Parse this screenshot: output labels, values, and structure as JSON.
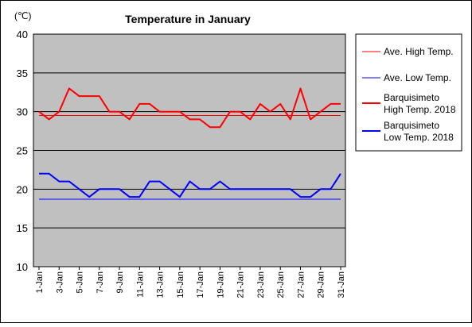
{
  "chart_data": {
    "type": "line",
    "title": "Temperature in January",
    "unit_label": "(℃)",
    "ylim": [
      10,
      40
    ],
    "yticks": [
      10,
      15,
      20,
      25,
      30,
      35,
      40
    ],
    "grid": "horizontal",
    "legend_position": "right",
    "x": [
      "1-Jan",
      "2-Jan",
      "3-Jan",
      "4-Jan",
      "5-Jan",
      "6-Jan",
      "7-Jan",
      "8-Jan",
      "9-Jan",
      "10-Jan",
      "11-Jan",
      "12-Jan",
      "13-Jan",
      "14-Jan",
      "15-Jan",
      "16-Jan",
      "17-Jan",
      "18-Jan",
      "19-Jan",
      "20-Jan",
      "21-Jan",
      "22-Jan",
      "23-Jan",
      "24-Jan",
      "25-Jan",
      "26-Jan",
      "27-Jan",
      "28-Jan",
      "29-Jan",
      "30-Jan",
      "31-Jan"
    ],
    "x_tick_labels": [
      "1-Jan",
      "3-Jan",
      "5-Jan",
      "7-Jan",
      "9-Jan",
      "11-Jan",
      "13-Jan",
      "15-Jan",
      "17-Jan",
      "19-Jan",
      "21-Jan",
      "23-Jan",
      "25-Jan",
      "27-Jan",
      "29-Jan",
      "31-Jan"
    ],
    "series": [
      {
        "name": "Ave. High Temp.",
        "color": "#ff0000",
        "style": "thin",
        "values": [
          29.5,
          29.5,
          29.5,
          29.5,
          29.5,
          29.5,
          29.5,
          29.5,
          29.5,
          29.5,
          29.5,
          29.5,
          29.5,
          29.5,
          29.5,
          29.5,
          29.5,
          29.5,
          29.5,
          29.5,
          29.5,
          29.5,
          29.5,
          29.5,
          29.5,
          29.5,
          29.5,
          29.5,
          29.5,
          29.5,
          29.5
        ]
      },
      {
        "name": "Ave. Low Temp.",
        "color": "#0000ff",
        "style": "thin",
        "values": [
          18.7,
          18.7,
          18.7,
          18.7,
          18.7,
          18.7,
          18.7,
          18.7,
          18.7,
          18.7,
          18.7,
          18.7,
          18.7,
          18.7,
          18.7,
          18.7,
          18.7,
          18.7,
          18.7,
          18.7,
          18.7,
          18.7,
          18.7,
          18.7,
          18.7,
          18.7,
          18.7,
          18.7,
          18.7,
          18.7,
          18.7
        ]
      },
      {
        "name": "Barquisimeto High Temp. 2018",
        "color": "#ff0000",
        "style": "thick",
        "values": [
          30,
          29,
          30,
          33,
          32,
          32,
          32,
          30,
          30,
          29,
          31,
          31,
          30,
          30,
          30,
          29,
          29,
          28,
          28,
          30,
          30,
          29,
          31,
          30,
          31,
          29,
          33,
          29,
          30,
          31,
          31
        ]
      },
      {
        "name": "Barquisimeto Low Temp. 2018",
        "color": "#0000ff",
        "style": "thick",
        "values": [
          22,
          22,
          21,
          21,
          20,
          19,
          20,
          20,
          20,
          19,
          19,
          21,
          21,
          20,
          19,
          21,
          20,
          20,
          21,
          20,
          20,
          20,
          20,
          20,
          20,
          20,
          19,
          19,
          20,
          20,
          22
        ]
      }
    ],
    "legend": [
      {
        "lines": [
          "Ave. High Temp."
        ]
      },
      {
        "lines": [
          "Ave. Low Temp."
        ]
      },
      {
        "lines": [
          "Barquisimeto",
          "High Temp. 2018"
        ]
      },
      {
        "lines": [
          "Barquisimeto",
          "Low Temp. 2018"
        ]
      }
    ]
  }
}
